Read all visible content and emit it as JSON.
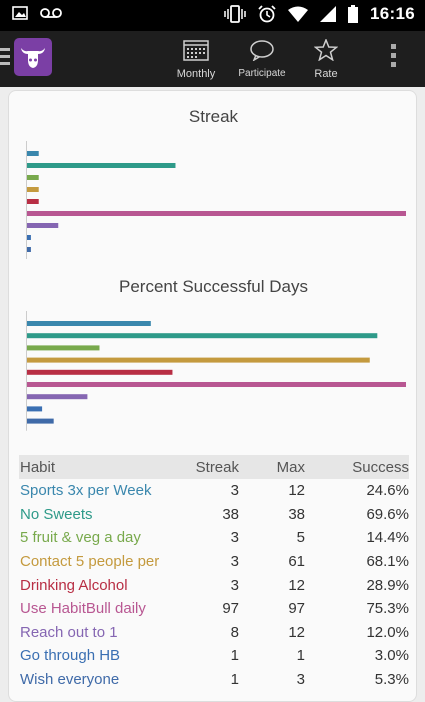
{
  "status_bar": {
    "time": "16:16"
  },
  "app_bar": {
    "actions": [
      {
        "label": "Monthly",
        "icon": "calendar-icon"
      },
      {
        "label": "Participate",
        "icon": "chat-bubble-icon"
      },
      {
        "label": "Rate",
        "icon": "star-icon"
      }
    ]
  },
  "colors": {
    "sports": "#3a87ad",
    "sweets": "#2e9a89",
    "fruit": "#78a94c",
    "contact": "#c49a3e",
    "alcohol": "#b82e44",
    "habitbull": "#b85792",
    "reach": "#8566b2",
    "hb": "#3a6fb2",
    "wish": "#3f6aa8"
  },
  "chart_data": [
    {
      "type": "bar",
      "title": "Streak",
      "categories": [
        "Sports 3x per Week",
        "No Sweets",
        "5 fruit & veg a day",
        "Contact 5 people per",
        "Drinking Alcohol",
        "Use HabitBull daily",
        "Reach out to 1",
        "Go through HB",
        "Wish everyone"
      ],
      "values": [
        3,
        38,
        3,
        3,
        3,
        97,
        8,
        1,
        1
      ],
      "xlim": [
        0,
        97
      ],
      "orientation": "horizontal"
    },
    {
      "type": "bar",
      "title": "Percent Successful Days",
      "categories": [
        "Sports 3x per Week",
        "No Sweets",
        "5 fruit & veg a day",
        "Contact 5 people per",
        "Drinking Alcohol",
        "Use HabitBull daily",
        "Reach out to 1",
        "Go through HB",
        "Wish everyone"
      ],
      "values": [
        24.6,
        69.6,
        14.4,
        68.1,
        28.9,
        75.3,
        12.0,
        3.0,
        5.3
      ],
      "xlim": [
        0,
        75.3
      ],
      "orientation": "horizontal"
    }
  ],
  "table": {
    "headers": [
      "Habit",
      "Streak",
      "Max",
      "Success"
    ],
    "rows": [
      {
        "habit": "Sports 3x per Week",
        "streak": "3",
        "max": "12",
        "success": "24.6%",
        "color_key": "sports"
      },
      {
        "habit": "No Sweets",
        "streak": "38",
        "max": "38",
        "success": "69.6%",
        "color_key": "sweets"
      },
      {
        "habit": "5 fruit & veg a day",
        "streak": "3",
        "max": "5",
        "success": "14.4%",
        "color_key": "fruit"
      },
      {
        "habit": "Contact 5 people per",
        "streak": "3",
        "max": "61",
        "success": "68.1%",
        "color_key": "contact"
      },
      {
        "habit": "Drinking Alcohol",
        "streak": "3",
        "max": "12",
        "success": "28.9%",
        "color_key": "alcohol"
      },
      {
        "habit": "Use HabitBull daily",
        "streak": "97",
        "max": "97",
        "success": "75.3%",
        "color_key": "habitbull"
      },
      {
        "habit": "Reach out to 1",
        "streak": "8",
        "max": "12",
        "success": "12.0%",
        "color_key": "reach"
      },
      {
        "habit": "Go through HB",
        "streak": "1",
        "max": "1",
        "success": "3.0%",
        "color_key": "hb"
      },
      {
        "habit": "Wish everyone",
        "streak": "1",
        "max": "3",
        "success": "5.3%",
        "color_key": "wish"
      }
    ]
  }
}
